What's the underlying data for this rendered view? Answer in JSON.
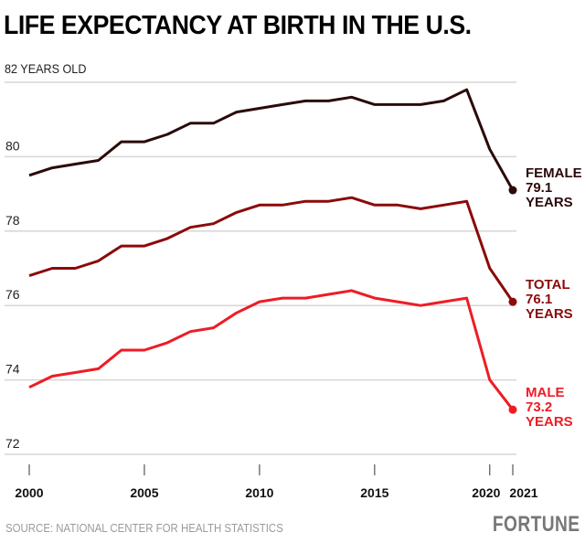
{
  "chart_data": {
    "type": "line",
    "title": "LIFE EXPECTANCY AT BIRTH IN THE U.S.",
    "ylabel": "82 YEARS OLD",
    "xlabel": "",
    "ylim": [
      72,
      82
    ],
    "xlim": [
      2000,
      2021
    ],
    "yticks": [
      {
        "value": 82,
        "label": "82 YEARS OLD"
      },
      {
        "value": 80,
        "label": "80"
      },
      {
        "value": 78,
        "label": "78"
      },
      {
        "value": 76,
        "label": "76"
      },
      {
        "value": 74,
        "label": "74"
      },
      {
        "value": 72,
        "label": "72"
      }
    ],
    "xticks": [
      {
        "value": 2000,
        "label": "2000"
      },
      {
        "value": 2005,
        "label": "2005"
      },
      {
        "value": 2010,
        "label": "2010"
      },
      {
        "value": 2015,
        "label": "2015"
      },
      {
        "value": 2020,
        "label": "2020"
      },
      {
        "value": 2021,
        "label": "2021"
      }
    ],
    "grid": true,
    "x": [
      2000,
      2001,
      2002,
      2003,
      2004,
      2005,
      2006,
      2007,
      2008,
      2009,
      2010,
      2011,
      2012,
      2013,
      2014,
      2015,
      2016,
      2017,
      2018,
      2019,
      2020,
      2021
    ],
    "series": [
      {
        "name": "Female",
        "color": "#2b0a0a",
        "values": [
          79.5,
          79.7,
          79.8,
          79.9,
          80.4,
          80.4,
          80.6,
          80.9,
          80.9,
          81.2,
          81.3,
          81.4,
          81.5,
          81.5,
          81.6,
          81.4,
          81.4,
          81.4,
          81.5,
          81.8,
          80.2,
          79.1
        ],
        "end_label": [
          "FEMALE",
          "79.1",
          "YEARS"
        ]
      },
      {
        "name": "Total",
        "color": "#8b0a0a",
        "values": [
          76.8,
          77.0,
          77.0,
          77.2,
          77.6,
          77.6,
          77.8,
          78.1,
          78.2,
          78.5,
          78.7,
          78.7,
          78.8,
          78.8,
          78.9,
          78.7,
          78.7,
          78.6,
          78.7,
          78.8,
          77.0,
          76.1
        ],
        "end_label": [
          "TOTAL",
          "76.1",
          "YEARS"
        ]
      },
      {
        "name": "Male",
        "color": "#ee1c25",
        "values": [
          73.8,
          74.1,
          74.2,
          74.3,
          74.8,
          74.8,
          75.0,
          75.3,
          75.4,
          75.8,
          76.1,
          76.2,
          76.2,
          76.3,
          76.4,
          76.2,
          76.1,
          76.0,
          76.1,
          76.2,
          74.0,
          73.2
        ],
        "end_label": [
          "MALE",
          "73.2",
          "YEARS"
        ]
      }
    ],
    "legend": "direct-labels-right",
    "source": "SOURCE: NATIONAL CENTER FOR HEALTH STATISTICS",
    "publisher": "FORTUNE"
  }
}
